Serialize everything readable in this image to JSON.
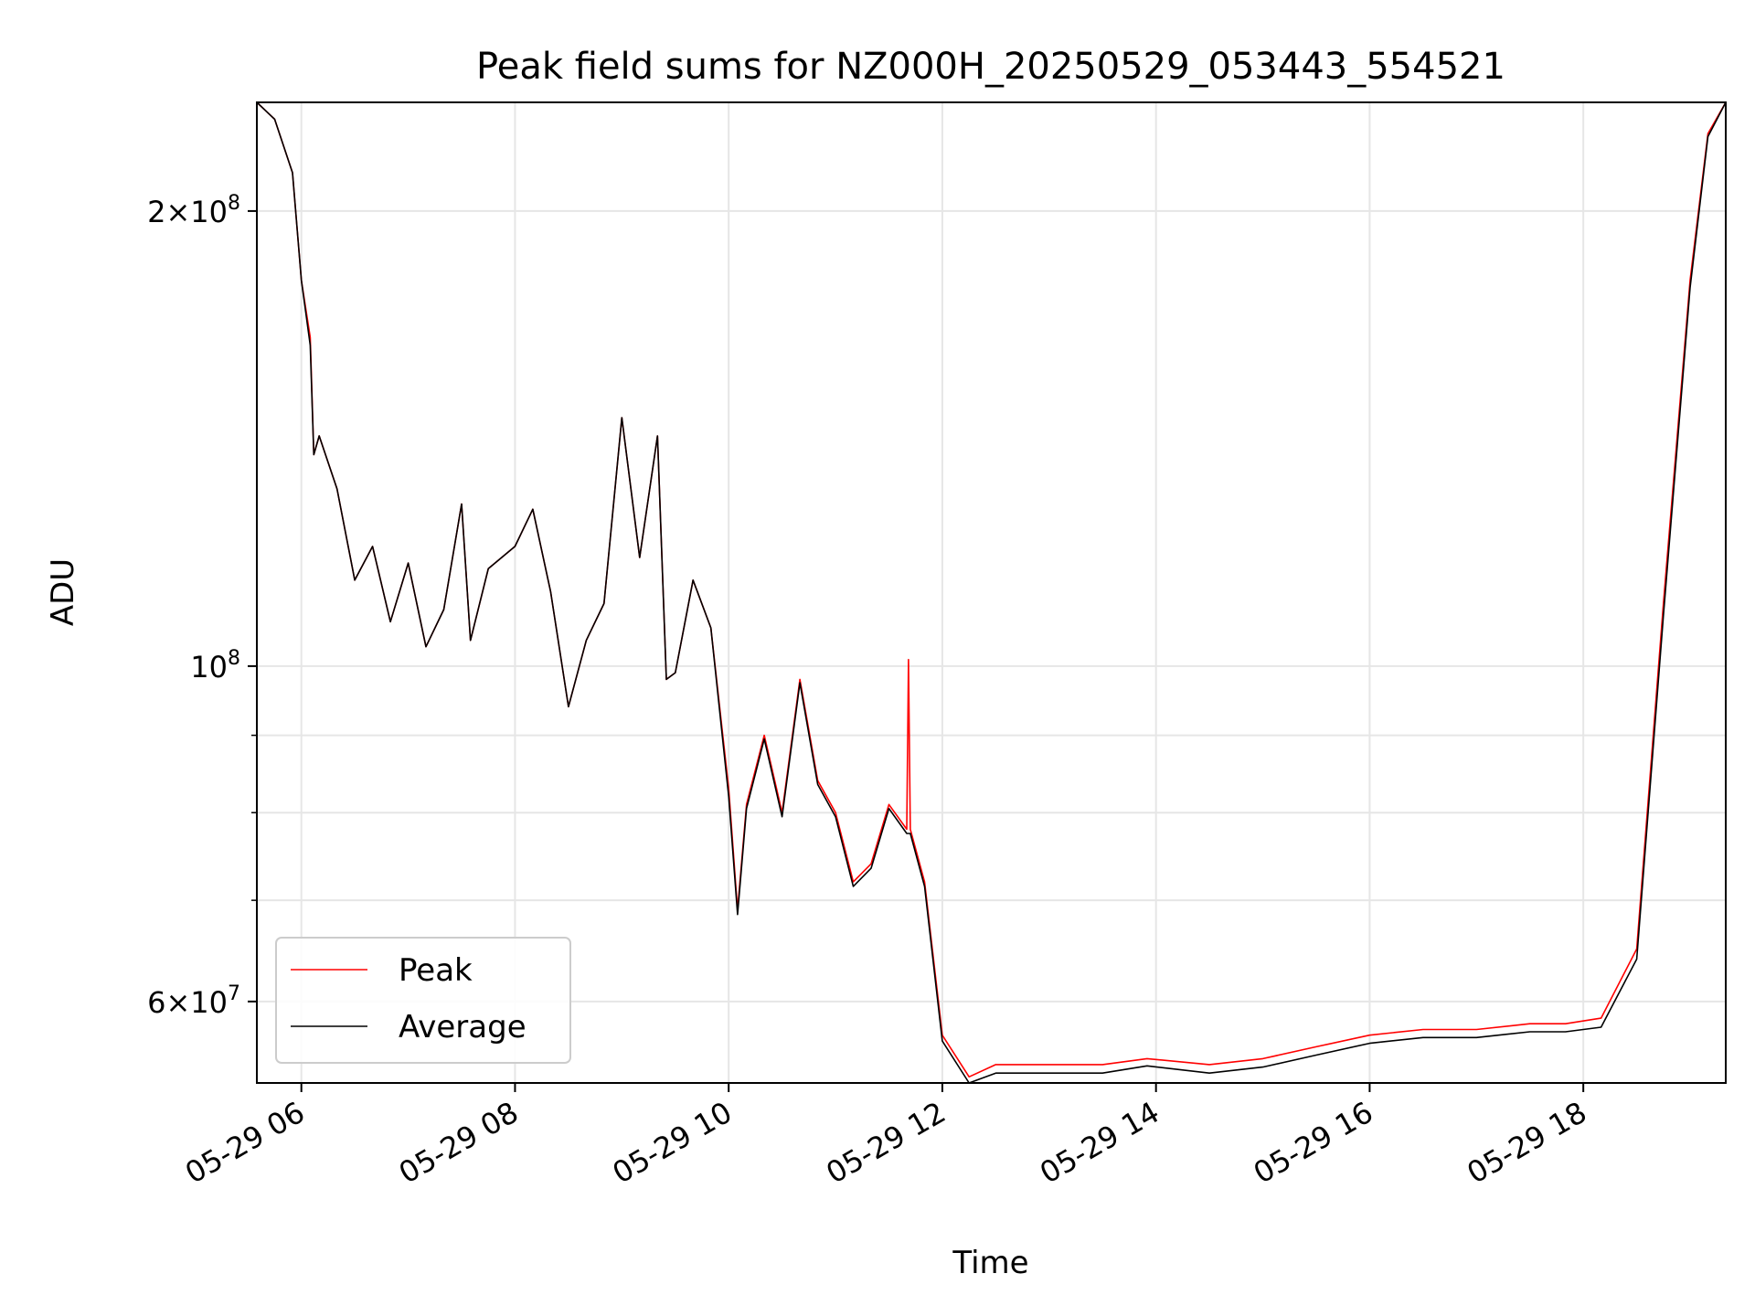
{
  "chart_data": {
    "type": "line",
    "title": "Peak field sums for NZ000H_20250529_053443_554521",
    "xlabel": "Time",
    "ylabel": "ADU",
    "yscale": "log",
    "grid": true,
    "legend_position": "lower-left",
    "x_range": [
      "2025-05-29 05:35",
      "2025-05-29 19:20"
    ],
    "y_range": [
      53000000,
      236000000
    ],
    "x_ticks": [
      "05-29 06",
      "05-29 08",
      "05-29 10",
      "05-29 12",
      "05-29 14",
      "05-29 16",
      "05-29 18"
    ],
    "x_tick_times": [
      "2025-05-29 06:00",
      "2025-05-29 08:00",
      "2025-05-29 10:00",
      "2025-05-29 12:00",
      "2025-05-29 14:00",
      "2025-05-29 16:00",
      "2025-05-29 18:00"
    ],
    "y_major_ticks": [
      {
        "value": 60000000,
        "mantissa": "6",
        "exponent": "7"
      },
      {
        "value": 100000000,
        "mantissa": "",
        "exponent": "8"
      },
      {
        "value": 200000000,
        "mantissa": "2",
        "exponent": "8"
      }
    ],
    "y_minor_ticks": [
      70000000,
      80000000,
      90000000
    ],
    "series": [
      {
        "name": "Peak",
        "color": "#ff0000",
        "time": [
          "2025-05-29 05:35",
          "2025-05-29 05:45",
          "2025-05-29 05:55",
          "2025-05-29 06:00",
          "2025-05-29 06:05",
          "2025-05-29 06:07",
          "2025-05-29 06:10",
          "2025-05-29 06:20",
          "2025-05-29 06:30",
          "2025-05-29 06:40",
          "2025-05-29 06:50",
          "2025-05-29 07:00",
          "2025-05-29 07:10",
          "2025-05-29 07:20",
          "2025-05-29 07:30",
          "2025-05-29 07:35",
          "2025-05-29 07:45",
          "2025-05-29 08:00",
          "2025-05-29 08:10",
          "2025-05-29 08:20",
          "2025-05-29 08:30",
          "2025-05-29 08:40",
          "2025-05-29 08:50",
          "2025-05-29 09:00",
          "2025-05-29 09:10",
          "2025-05-29 09:20",
          "2025-05-29 09:25",
          "2025-05-29 09:30",
          "2025-05-29 09:40",
          "2025-05-29 09:50",
          "2025-05-29 10:00",
          "2025-05-29 10:05",
          "2025-05-29 10:10",
          "2025-05-29 10:20",
          "2025-05-29 10:30",
          "2025-05-29 10:40",
          "2025-05-29 10:50",
          "2025-05-29 11:00",
          "2025-05-29 11:10",
          "2025-05-29 11:20",
          "2025-05-29 11:30",
          "2025-05-29 11:40",
          "2025-05-29 11:41",
          "2025-05-29 11:42",
          "2025-05-29 11:50",
          "2025-05-29 12:00",
          "2025-05-29 12:15",
          "2025-05-29 12:30",
          "2025-05-29 13:00",
          "2025-05-29 13:30",
          "2025-05-29 13:55",
          "2025-05-29 14:30",
          "2025-05-29 15:00",
          "2025-05-29 15:30",
          "2025-05-29 16:00",
          "2025-05-29 16:30",
          "2025-05-29 17:00",
          "2025-05-29 17:30",
          "2025-05-29 17:50",
          "2025-05-29 18:10",
          "2025-05-29 18:30",
          "2025-05-29 18:45",
          "2025-05-29 19:00",
          "2025-05-29 19:10",
          "2025-05-29 19:20"
        ],
        "values": [
          236000000,
          230000000,
          212000000,
          180000000,
          165000000,
          138000000,
          142000000,
          131000000,
          114000000,
          120000000,
          107000000,
          117000000,
          103000000,
          109000000,
          128000000,
          104000000,
          116000000,
          120000000,
          127000000,
          112000000,
          94000000,
          104000000,
          110000000,
          146000000,
          118000000,
          142000000,
          98000000,
          99000000,
          114000000,
          106000000,
          83000000,
          69000000,
          81000000,
          90000000,
          80000000,
          98000000,
          84000000,
          80000000,
          72000000,
          74000000,
          81000000,
          78000000,
          101000000,
          78000000,
          72000000,
          57000000,
          53500000,
          54500000,
          54500000,
          54500000,
          55000000,
          54500000,
          55000000,
          56000000,
          57000000,
          57500000,
          57500000,
          58000000,
          58000000,
          58500000,
          65000000,
          110000000,
          180000000,
          225000000,
          236000000
        ]
      },
      {
        "name": "Average",
        "color": "#000000",
        "time": [
          "2025-05-29 05:35",
          "2025-05-29 05:45",
          "2025-05-29 05:55",
          "2025-05-29 06:00",
          "2025-05-29 06:05",
          "2025-05-29 06:07",
          "2025-05-29 06:10",
          "2025-05-29 06:20",
          "2025-05-29 06:30",
          "2025-05-29 06:40",
          "2025-05-29 06:50",
          "2025-05-29 07:00",
          "2025-05-29 07:10",
          "2025-05-29 07:20",
          "2025-05-29 07:30",
          "2025-05-29 07:35",
          "2025-05-29 07:45",
          "2025-05-29 08:00",
          "2025-05-29 08:10",
          "2025-05-29 08:20",
          "2025-05-29 08:30",
          "2025-05-29 08:40",
          "2025-05-29 08:50",
          "2025-05-29 09:00",
          "2025-05-29 09:10",
          "2025-05-29 09:20",
          "2025-05-29 09:25",
          "2025-05-29 09:30",
          "2025-05-29 09:40",
          "2025-05-29 09:50",
          "2025-05-29 10:00",
          "2025-05-29 10:05",
          "2025-05-29 10:10",
          "2025-05-29 10:20",
          "2025-05-29 10:30",
          "2025-05-29 10:40",
          "2025-05-29 10:50",
          "2025-05-29 11:00",
          "2025-05-29 11:10",
          "2025-05-29 11:20",
          "2025-05-29 11:30",
          "2025-05-29 11:40",
          "2025-05-29 11:41",
          "2025-05-29 11:42",
          "2025-05-29 11:50",
          "2025-05-29 12:00",
          "2025-05-29 12:15",
          "2025-05-29 12:30",
          "2025-05-29 13:00",
          "2025-05-29 13:30",
          "2025-05-29 13:55",
          "2025-05-29 14:30",
          "2025-05-29 15:00",
          "2025-05-29 15:30",
          "2025-05-29 16:00",
          "2025-05-29 16:30",
          "2025-05-29 17:00",
          "2025-05-29 17:30",
          "2025-05-29 17:50",
          "2025-05-29 18:10",
          "2025-05-29 18:30",
          "2025-05-29 18:45",
          "2025-05-29 19:00",
          "2025-05-29 19:10",
          "2025-05-29 19:20"
        ],
        "values": [
          236000000,
          230000000,
          212000000,
          180000000,
          163000000,
          138000000,
          142000000,
          131000000,
          114000000,
          120000000,
          107000000,
          117000000,
          103000000,
          109000000,
          128000000,
          104000000,
          116000000,
          120000000,
          127000000,
          112000000,
          94000000,
          104000000,
          110000000,
          146000000,
          118000000,
          142000000,
          98000000,
          99000000,
          114000000,
          106000000,
          82000000,
          68500000,
          80500000,
          89500000,
          79500000,
          97500000,
          83500000,
          79500000,
          71500000,
          73500000,
          80500000,
          77500000,
          77500000,
          77500000,
          71500000,
          56500000,
          53000000,
          53800000,
          53800000,
          53800000,
          54400000,
          53800000,
          54300000,
          55300000,
          56300000,
          56800000,
          56800000,
          57300000,
          57300000,
          57700000,
          64000000,
          108000000,
          178000000,
          224000000,
          236000000
        ]
      }
    ]
  }
}
